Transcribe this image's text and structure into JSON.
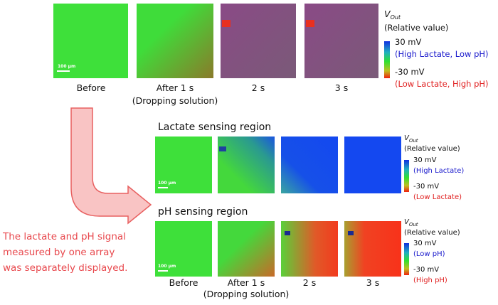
{
  "top_row": {
    "images": [
      {
        "label": "Before"
      },
      {
        "label": "After 1 s",
        "sublabel": "(Dropping solution)"
      },
      {
        "label": "2 s"
      },
      {
        "label": "3 s"
      }
    ],
    "scale_bar": "100 µm",
    "colorbar": {
      "symbol": "V",
      "subscript": "Out",
      "unit_note": "(Relative value)",
      "max_label": "30 mV",
      "max_note": "(High Lactate, Low pH)",
      "min_label": "-30 mV",
      "min_note": "(Low Lactate, High pH)"
    }
  },
  "lactate_panel": {
    "title": "Lactate sensing region",
    "scale_bar": "100 µm",
    "colorbar": {
      "symbol": "V",
      "subscript": "Out",
      "unit_note": "(Relative value)",
      "max_label": "30 mV",
      "max_note": "(High Lactate)",
      "min_label": "-30 mV",
      "min_note": "(Low Lactate)"
    }
  },
  "ph_panel": {
    "title": "pH sensing region",
    "scale_bar": "100 µm",
    "images": [
      {
        "label": "Before"
      },
      {
        "label": "After 1 s",
        "sublabel": "(Dropping solution)"
      },
      {
        "label": "2 s"
      },
      {
        "label": "3 s"
      }
    ],
    "colorbar": {
      "symbol": "V",
      "subscript": "Out",
      "unit_note": "(Relative value)",
      "max_label": "30 mV",
      "max_note": "(Low pH)",
      "min_label": "-30 mV",
      "min_note": "(High pH)"
    }
  },
  "note": [
    "The lactate and pH signal",
    "measured by one array",
    "was separately displayed."
  ]
}
